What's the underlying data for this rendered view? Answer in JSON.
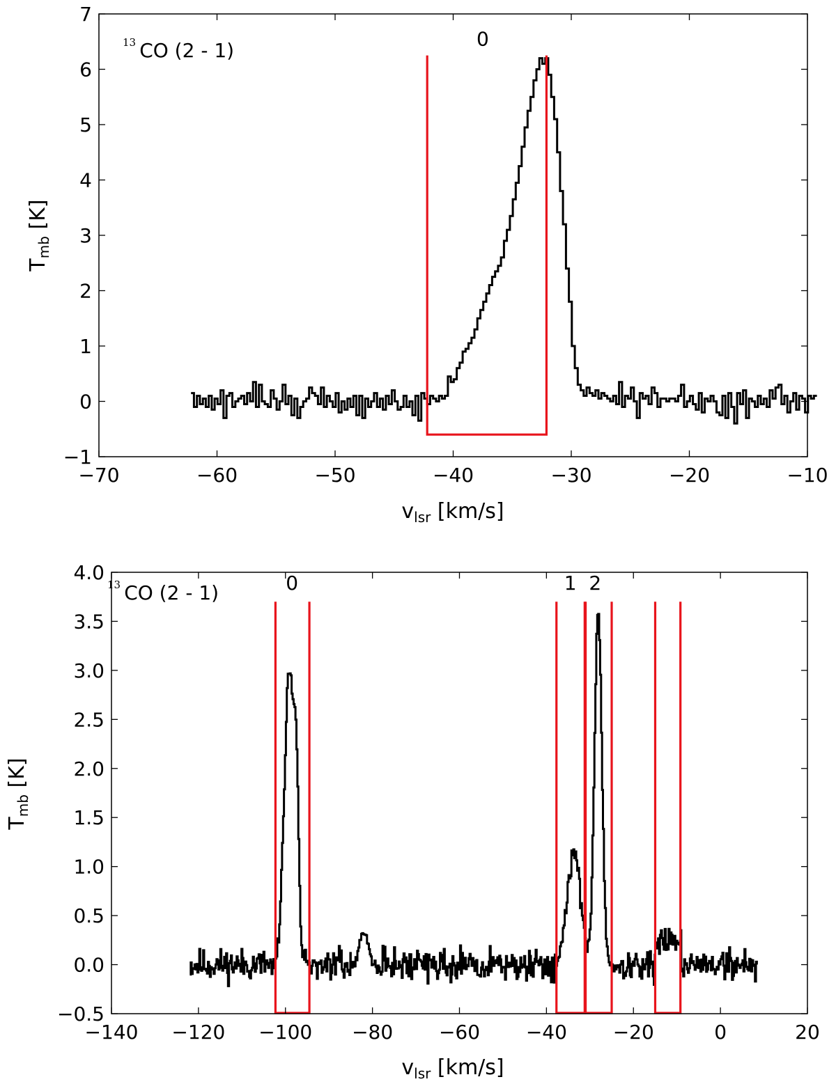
{
  "chart_data": [
    {
      "type": "line",
      "annotation": {
        "sup": "13",
        "text": "CO (2 - 1)"
      },
      "xlabel": {
        "main": "v",
        "sub": "lsr",
        "unit": " [km/s]"
      },
      "ylabel": {
        "main": "T",
        "sub": "mb",
        "unit": " [K]"
      },
      "xlim": [
        -70,
        -10
      ],
      "ylim": [
        -1,
        7
      ],
      "xticks": [
        "−70",
        "−60",
        "−50",
        "−40",
        "−30",
        "−20",
        "−10"
      ],
      "xtick_values": [
        -70,
        -60,
        -50,
        -40,
        -30,
        -20,
        -10
      ],
      "yticks": [
        "−1",
        "0",
        "1",
        "2",
        "3",
        "4",
        "5",
        "6",
        "7"
      ],
      "ytick_values": [
        -1,
        0,
        1,
        2,
        3,
        4,
        5,
        6,
        7
      ],
      "grid": false,
      "colors": {
        "spectrum": "#000000",
        "window": "#e8141c"
      },
      "spectrum": {
        "x_start": -62.2,
        "x_step": 0.25,
        "y": [
          0.15,
          -0.1,
          0.1,
          -0.05,
          0.05,
          -0.1,
          0.1,
          -0.15,
          0.05,
          -0.05,
          0.2,
          -0.3,
          0.1,
          0.15,
          -0.1,
          0.0,
          0.05,
          0.1,
          -0.05,
          0.15,
          0.0,
          0.35,
          -0.1,
          0.3,
          0.0,
          -0.05,
          -0.1,
          0.2,
          0.05,
          -0.15,
          0.0,
          0.3,
          -0.05,
          0.1,
          -0.25,
          0.05,
          -0.3,
          -0.1,
          0.0,
          0.05,
          0.25,
          0.15,
          0.1,
          -0.05,
          0.25,
          -0.1,
          0.1,
          0.0,
          -0.1,
          0.15,
          -0.2,
          0.0,
          -0.15,
          0.05,
          -0.1,
          0.1,
          -0.25,
          0.1,
          -0.3,
          0.05,
          -0.1,
          0.0,
          0.15,
          -0.1,
          0.05,
          -0.15,
          0.1,
          -0.05,
          0.2,
          0.0,
          -0.15,
          -0.1,
          0.1,
          -0.1,
          0.0,
          -0.25,
          0.1,
          -0.35,
          0.15,
          0.05,
          -0.05,
          0.1,
          0.05,
          0.0,
          0.1,
          0.05,
          0.1,
          0.45,
          0.35,
          0.4,
          0.6,
          0.7,
          0.9,
          0.95,
          1.05,
          1.15,
          1.3,
          1.5,
          1.65,
          1.8,
          1.95,
          2.1,
          2.25,
          2.35,
          2.45,
          2.6,
          2.9,
          3.1,
          3.35,
          3.65,
          3.95,
          4.25,
          4.6,
          4.95,
          5.25,
          5.5,
          5.8,
          6.0,
          6.2,
          6.1,
          6.2,
          5.9,
          5.5,
          5.1,
          4.5,
          3.8,
          3.2,
          2.4,
          1.8,
          1.0,
          0.6,
          0.3,
          0.2,
          0.1,
          0.25,
          0.15,
          0.1,
          0.2,
          0.05,
          0.15,
          0.1,
          0.05,
          0.0,
          0.1,
          -0.05,
          0.35,
          -0.1,
          0.1,
          0.05,
          0.25,
          0.0,
          -0.3,
          0.15,
          0.05,
          0.1,
          -0.05,
          0.25,
          0.15,
          -0.1,
          0.05,
          0.05,
          0.0,
          0.05,
          0.05,
          0.0,
          0.1,
          0.3,
          -0.1,
          0.0,
          0.1,
          -0.05,
          -0.15,
          0.15,
          -0.2,
          0.05,
          0.0,
          0.1,
          0.0,
          -0.2,
          -0.25,
          0.1,
          -0.3,
          0.15,
          -0.1,
          -0.4,
          0.15,
          -0.05,
          0.2,
          -0.3,
          0.05,
          0.0,
          -0.1,
          0.1,
          -0.05,
          0.05,
          -0.1,
          0.2,
          0.05,
          0.25,
          0.3,
          -0.05,
          0.1,
          -0.2,
          0.0,
          0.15,
          -0.15,
          0.1,
          0.05,
          -0.2,
          0.1,
          0.05,
          0.1
        ]
      },
      "windows": [
        [
          -42.2,
          -32.1
        ]
      ],
      "window_top": 6.25,
      "labels": [
        {
          "text": "0",
          "x": -37.5,
          "y": 6.35
        }
      ]
    },
    {
      "type": "line",
      "annotation": {
        "sup": "13",
        "text": "CO (2 - 1)"
      },
      "xlabel": {
        "main": "v",
        "sub": "lsr",
        "unit": " [km/s]"
      },
      "ylabel": {
        "main": "T",
        "sub": "mb",
        "unit": " [K]"
      },
      "xlim": [
        -140,
        20
      ],
      "ylim": [
        -0.5,
        4.0
      ],
      "xticks": [
        "−140",
        "−120",
        "−100",
        "−80",
        "−60",
        "−40",
        "−20",
        "0",
        "20"
      ],
      "xtick_values": [
        -140,
        -120,
        -100,
        -80,
        -60,
        -40,
        -20,
        0,
        20
      ],
      "yticks": [
        "−0.5",
        "0.0",
        "0.5",
        "1.0",
        "1.5",
        "2.0",
        "2.5",
        "3.0",
        "3.5",
        "4.0"
      ],
      "ytick_values": [
        -0.5,
        0.0,
        0.5,
        1.0,
        1.5,
        2.0,
        2.5,
        3.0,
        3.5,
        4.0
      ],
      "grid": false,
      "colors": {
        "spectrum": "#000000",
        "window": "#e8141c"
      },
      "spectrum_segments": [
        {
          "x_start": -122.0,
          "x_end": -103.2,
          "baseline": 0.0,
          "noise": 0.16,
          "seed": 11
        },
        {
          "x_start": -103.2,
          "x_end": -93.0,
          "peaks": [
            [
              -99.2,
              3.0,
              1.15
            ],
            [
              -97.6,
              1.2,
              0.55
            ]
          ],
          "noise": 0.12,
          "seed": 12
        },
        {
          "x_start": -93.0,
          "x_end": -85.0,
          "baseline": 0.0,
          "noise": 0.15,
          "seed": 13
        },
        {
          "x_start": -85.0,
          "x_end": -79.0,
          "baseline": 0.0,
          "peaks": [
            [
              -82.0,
              0.3,
              1.2
            ]
          ],
          "noise": 0.1,
          "seed": 14
        },
        {
          "x_start": -79.0,
          "x_end": -38.0,
          "baseline": 0.0,
          "noise": 0.16,
          "seed": 15
        },
        {
          "x_start": -38.0,
          "x_end": -25.0,
          "peaks": [
            [
              -33.8,
              1.1,
              1.6
            ],
            [
              -28.2,
              3.6,
              0.85
            ]
          ],
          "noise": 0.1,
          "seed": 16
        },
        {
          "x_start": -25.0,
          "x_end": -15.0,
          "baseline": 0.0,
          "noise": 0.15,
          "seed": 17
        },
        {
          "x_start": -15.0,
          "x_end": -9.0,
          "baseline": 0.25,
          "noise": 0.12,
          "seed": 18
        },
        {
          "x_start": -9.0,
          "x_end": 8.5,
          "baseline": 0.0,
          "noise": 0.16,
          "seed": 19
        }
      ],
      "x_step": 0.22,
      "windows": [
        [
          -102.3,
          -94.5
        ],
        [
          -37.7,
          -31.2
        ],
        [
          -31.0,
          -25.0
        ],
        [
          -15.0,
          -9.2
        ]
      ],
      "window_top": 3.7,
      "labels": [
        {
          "text": "0",
          "x": -98.5,
          "y": 3.78
        },
        {
          "text": "1",
          "x": -34.5,
          "y": 3.78
        },
        {
          "text": "2",
          "x": -28.8,
          "y": 3.78
        }
      ]
    }
  ]
}
